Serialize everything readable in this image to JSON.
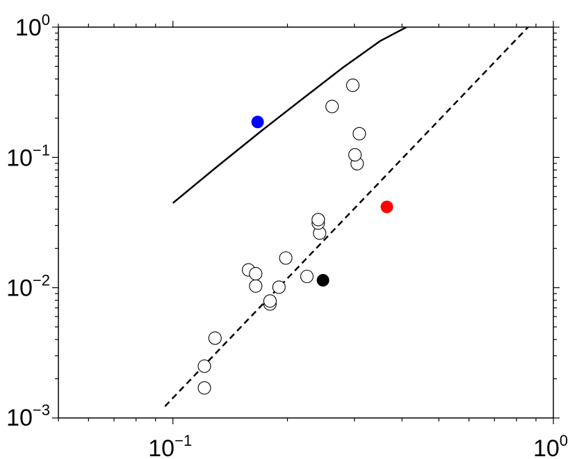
{
  "chart_data": {
    "type": "scatter",
    "title": "",
    "xlabel": "",
    "ylabel": "",
    "xscale": "log",
    "yscale": "log",
    "xlim": [
      0.05,
      1
    ],
    "ylim": [
      0.001,
      1
    ],
    "grid": false,
    "legend": "none",
    "x_ticks": [
      {
        "base": "10",
        "exp": "−1",
        "value": 0.1
      },
      {
        "base": "10",
        "exp": "0",
        "value": 1
      }
    ],
    "y_ticks": [
      {
        "base": "10",
        "exp": "−3",
        "value": 0.001
      },
      {
        "base": "10",
        "exp": "−2",
        "value": 0.01
      },
      {
        "base": "10",
        "exp": "−1",
        "value": 0.1
      },
      {
        "base": "10",
        "exp": "0",
        "value": 1
      }
    ],
    "series": [
      {
        "marker": "open-circle",
        "color": "#000000",
        "points": [
          [
            0.121,
            0.0017
          ],
          [
            0.121,
            0.0025
          ],
          [
            0.129,
            0.0041
          ],
          [
            0.18,
            0.0075
          ],
          [
            0.18,
            0.0079
          ],
          [
            0.19,
            0.0101
          ],
          [
            0.165,
            0.0103
          ],
          [
            0.158,
            0.0137
          ],
          [
            0.165,
            0.0128
          ],
          [
            0.198,
            0.0169
          ],
          [
            0.225,
            0.0122
          ],
          [
            0.243,
            0.0262
          ],
          [
            0.241,
            0.0313
          ],
          [
            0.241,
            0.0333
          ],
          [
            0.305,
            0.0895
          ],
          [
            0.301,
            0.1047
          ],
          [
            0.309,
            0.152
          ],
          [
            0.262,
            0.246
          ],
          [
            0.297,
            0.358
          ]
        ]
      },
      {
        "marker": "filled-circle",
        "color": "#0000ff",
        "points": [
          [
            0.167,
            0.187
          ]
        ]
      },
      {
        "marker": "filled-circle",
        "color": "#ff0000",
        "points": [
          [
            0.365,
            0.0417
          ]
        ]
      },
      {
        "marker": "filled-circle",
        "color": "#000000",
        "points": [
          [
            0.248,
            0.0114
          ]
        ]
      }
    ],
    "lines": [
      {
        "style": "solid",
        "color": "#000000",
        "points": [
          [
            0.1,
            0.0446
          ],
          [
            0.13,
            0.084
          ],
          [
            0.17,
            0.158
          ],
          [
            0.22,
            0.284
          ],
          [
            0.28,
            0.49
          ],
          [
            0.35,
            0.78
          ],
          [
            0.411,
            1.0
          ]
        ]
      },
      {
        "style": "dashed",
        "color": "#000000",
        "points": [
          [
            0.0953,
            0.00123
          ],
          [
            0.858,
            1.0
          ]
        ]
      }
    ]
  }
}
